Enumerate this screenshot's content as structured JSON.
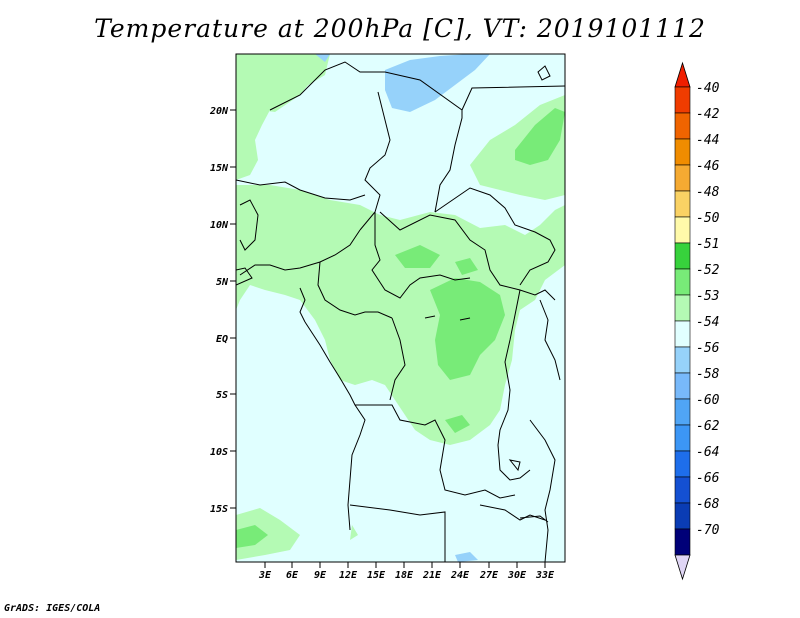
{
  "title": "Temperature at 200hPa [C], VT: 2019101112",
  "credit": "GrADS: IGES/COLA",
  "map": {
    "lat_labels": [
      "20N",
      "15N",
      "10N",
      "5N",
      "EQ",
      "5S",
      "10S",
      "15S"
    ],
    "lon_labels": [
      "3E",
      "6E",
      "9E",
      "12E",
      "15E",
      "18E",
      "21E",
      "24E",
      "27E",
      "30E",
      "33E"
    ],
    "colors": {
      "background": "#e0ffff",
      "light_green": "#b4fab4",
      "mid_green": "#78eb78",
      "light_blue": "#96d2fa"
    }
  },
  "colorbar": {
    "labels": [
      "-40",
      "-42",
      "-44",
      "-46",
      "-48",
      "-50",
      "-51",
      "-52",
      "-53",
      "-54",
      "-56",
      "-58",
      "-60",
      "-62",
      "-64",
      "-66",
      "-68",
      "-70"
    ],
    "colors": [
      "#f01e00",
      "#f03c00",
      "#f06400",
      "#f08c00",
      "#f5aa32",
      "#fad264",
      "#fffaaa",
      "#37d23c",
      "#78eb78",
      "#b4fab4",
      "#e1ffff",
      "#96d2fa",
      "#78b9fa",
      "#50a5f5",
      "#3c96f5",
      "#1e6eeb",
      "#1450d2",
      "#0a3cb4",
      "#000078",
      "#e0d6f5"
    ]
  }
}
